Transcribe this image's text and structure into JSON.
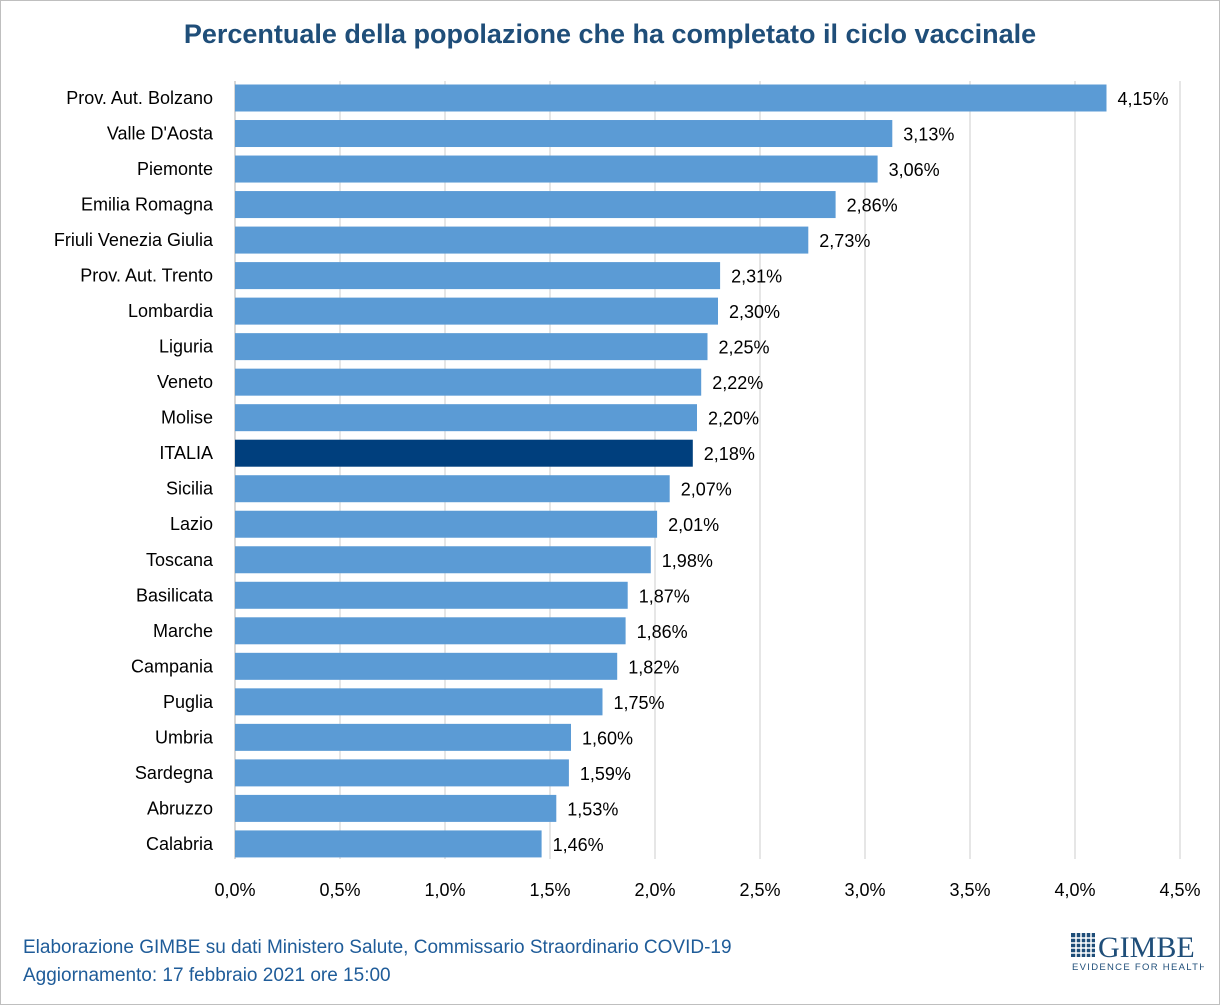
{
  "chart_data": {
    "type": "bar",
    "orientation": "horizontal",
    "title": "Percentuale della popolazione che ha completato il ciclo vaccinale",
    "categories": [
      "Prov. Aut. Bolzano",
      "Valle D'Aosta",
      "Piemonte",
      "Emilia Romagna",
      "Friuli Venezia Giulia",
      "Prov. Aut. Trento",
      "Lombardia",
      "Liguria",
      "Veneto",
      "Molise",
      "ITALIA",
      "Sicilia",
      "Lazio",
      "Toscana",
      "Basilicata",
      "Marche",
      "Campania",
      "Puglia",
      "Umbria",
      "Sardegna",
      "Abruzzo",
      "Calabria"
    ],
    "values": [
      4.15,
      3.13,
      3.06,
      2.86,
      2.73,
      2.31,
      2.3,
      2.25,
      2.22,
      2.2,
      2.18,
      2.07,
      2.01,
      1.98,
      1.87,
      1.86,
      1.82,
      1.75,
      1.6,
      1.59,
      1.53,
      1.46
    ],
    "data_labels": [
      "4,15%",
      "3,13%",
      "3,06%",
      "2,86%",
      "2,73%",
      "2,31%",
      "2,30%",
      "2,25%",
      "2,22%",
      "2,20%",
      "2,18%",
      "2,07%",
      "2,01%",
      "1,98%",
      "1,87%",
      "1,86%",
      "1,82%",
      "1,75%",
      "1,60%",
      "1,59%",
      "1,53%",
      "1,46%"
    ],
    "highlight": "ITALIA",
    "xlim": [
      0,
      4.5
    ],
    "xticks": [
      0,
      0.5,
      1,
      1.5,
      2,
      2.5,
      3,
      3.5,
      4,
      4.5
    ],
    "xtick_labels": [
      "0,0%",
      "0,5%",
      "1,0%",
      "1,5%",
      "2,0%",
      "2,5%",
      "3,0%",
      "3,5%",
      "4,0%",
      "4,5%"
    ],
    "xlabel": "",
    "ylabel": "",
    "grid": "vertical",
    "colors": {
      "bar": "#5b9bd5",
      "highlight": "#003f7d",
      "grid": "#d9d9d9"
    }
  },
  "footer": {
    "line1": "Elaborazione GIMBE su dati Ministero Salute, Commissario Straordinario COVID-19",
    "line2": "Aggiornamento: 17 febbraio 2021 ore 15:00"
  },
  "logo": {
    "name": "GIMBE",
    "tagline": "EVIDENCE FOR HEALTH"
  }
}
